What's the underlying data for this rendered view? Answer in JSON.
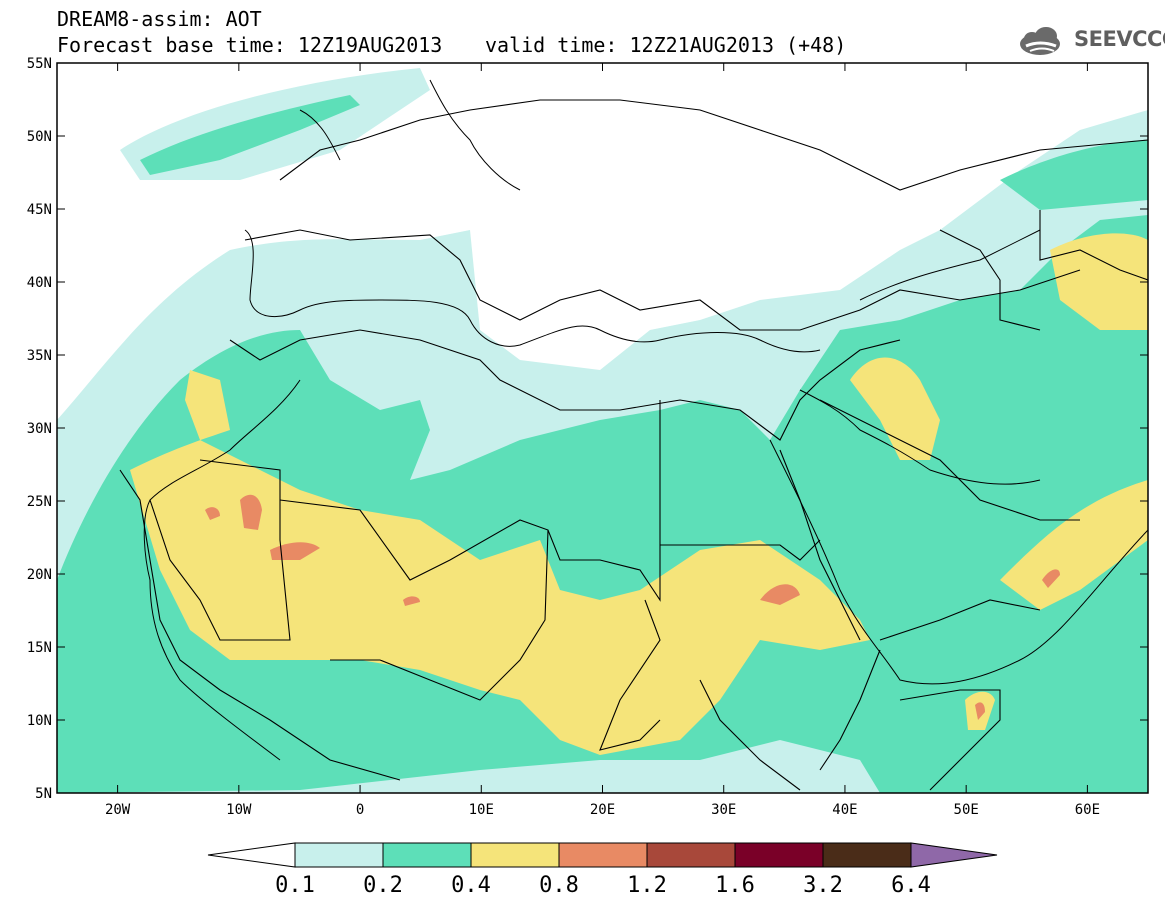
{
  "header": {
    "model_line": "DREAM8-assim: AOT",
    "base_time": "Forecast base time: 12Z19AUG2013",
    "valid_time": "valid time: 12Z21AUG2013 (+48)"
  },
  "logo": {
    "text": "SEEVCCC",
    "icon": "cloud-logo-icon"
  },
  "map": {
    "lon_range": [
      -25,
      65
    ],
    "lat_range": [
      5,
      55
    ],
    "lat_labels": [
      "55N",
      "50N",
      "45N",
      "40N",
      "35N",
      "30N",
      "25N",
      "20N",
      "15N",
      "10N",
      "5N"
    ],
    "lon_labels": [
      "20W",
      "10W",
      "0",
      "10E",
      "20E",
      "30E",
      "40E",
      "50E",
      "60E"
    ]
  },
  "colorbar": {
    "levels": [
      "0.1",
      "0.2",
      "0.4",
      "0.8",
      "1.2",
      "1.6",
      "3.2",
      "6.4"
    ],
    "colors": [
      "#c8f0ec",
      "#5ddfb8",
      "#f5e47a",
      "#e88a64",
      "#a8483a",
      "#7a0028",
      "#4a2c18"
    ],
    "over_color": "#8f68a8",
    "under_color": "#ffffff"
  }
}
